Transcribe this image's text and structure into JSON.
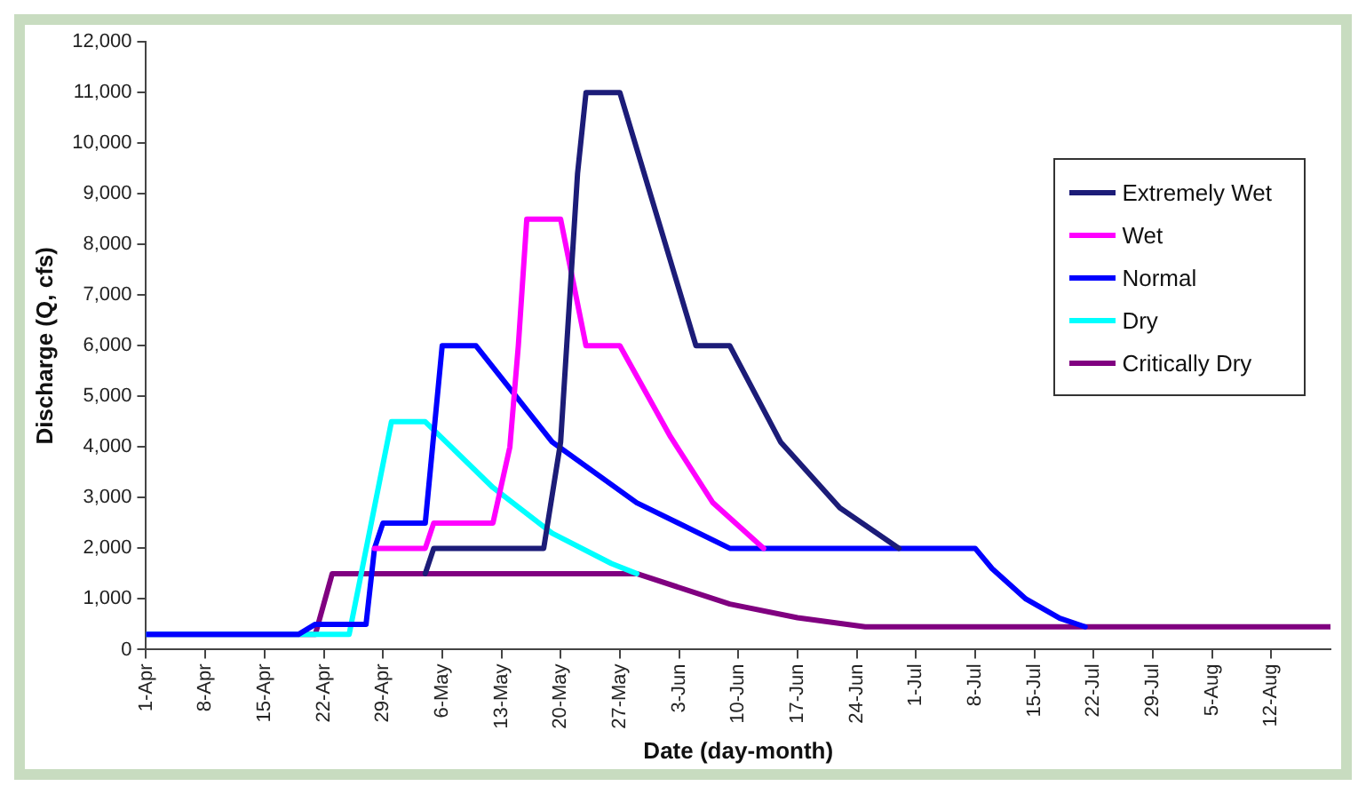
{
  "chart_data": {
    "type": "line",
    "xlabel": "Date (day-month)",
    "ylabel": "Discharge (Q, cfs)",
    "legend": "top right",
    "grid": false,
    "marker": "none",
    "line_style": "solid",
    "xlim": [
      "--04-01",
      "--08-19"
    ],
    "xticks": [
      {
        "value": "--04-01",
        "label": "1-Apr"
      },
      {
        "value": "--04-08",
        "label": "8-Apr"
      },
      {
        "value": "--04-15",
        "label": "15-Apr"
      },
      {
        "value": "--04-22",
        "label": "22-Apr"
      },
      {
        "value": "--04-29",
        "label": "29-Apr"
      },
      {
        "value": "--05-06",
        "label": "6-May"
      },
      {
        "value": "--05-13",
        "label": "13-May"
      },
      {
        "value": "--05-20",
        "label": "20-May"
      },
      {
        "value": "--05-27",
        "label": "27-May"
      },
      {
        "value": "--06-03",
        "label": "3-Jun"
      },
      {
        "value": "--06-10",
        "label": "10-Jun"
      },
      {
        "value": "--06-17",
        "label": "17-Jun"
      },
      {
        "value": "--06-24",
        "label": "24-Jun"
      },
      {
        "value": "--07-01",
        "label": "1-Jul"
      },
      {
        "value": "--07-08",
        "label": "8-Jul"
      },
      {
        "value": "--07-15",
        "label": "15-Jul"
      },
      {
        "value": "--07-22",
        "label": "22-Jul"
      },
      {
        "value": "--07-29",
        "label": "29-Jul"
      },
      {
        "value": "--08-05",
        "label": "5-Aug"
      },
      {
        "value": "--08-12",
        "label": "12-Aug"
      }
    ],
    "ylim": [
      0,
      12000
    ],
    "yticks": [
      0,
      {
        "value": 1000,
        "label": "1,000"
      },
      {
        "value": 2000,
        "label": "2,000"
      },
      {
        "value": 3000,
        "label": "3,000"
      },
      {
        "value": 4000,
        "label": "4,000"
      },
      {
        "value": 5000,
        "label": "5,000"
      },
      {
        "value": 6000,
        "label": "6,000"
      },
      {
        "value": 7000,
        "label": "7,000"
      },
      {
        "value": 8000,
        "label": "8,000"
      },
      {
        "value": 9000,
        "label": "9,000"
      },
      {
        "value": 10000,
        "label": "10,000"
      },
      {
        "value": 11000,
        "label": "11,000"
      },
      {
        "value": 12000,
        "label": "12,000"
      }
    ],
    "series": [
      {
        "name": "Extremely Wet",
        "color": "#1c1c78",
        "x": [
          "--05-04",
          "--05-05",
          "--05-18",
          "--05-20",
          "--05-22",
          "--05-23",
          "--05-27",
          "--06-05",
          "--06-09",
          "--06-15",
          "--06-22",
          "--06-29"
        ],
        "values": [
          1500,
          2000,
          2000,
          4100,
          9400,
          11000,
          11000,
          6000,
          6000,
          4100,
          2800,
          2000
        ]
      },
      {
        "name": "Wet",
        "color": "#ff00ff",
        "x": [
          "--04-28",
          "--05-04",
          "--05-05",
          "--05-12",
          "--05-14",
          "--05-15",
          "--05-16",
          "--05-20",
          "--05-23",
          "--05-27",
          "--06-02",
          "--06-07",
          "--06-13"
        ],
        "values": [
          2000,
          2000,
          2500,
          2500,
          4000,
          6000,
          8500,
          8500,
          6000,
          6000,
          4200,
          2900,
          2000
        ]
      },
      {
        "name": "Normal",
        "color": "#0000ff",
        "x": [
          "--04-01",
          "--04-19",
          "--04-21",
          "--04-27",
          "--04-28",
          "--04-29",
          "--05-04",
          "--05-06",
          "--05-10",
          "--05-19",
          "--05-29",
          "--06-09",
          "--07-08",
          "--07-10",
          "--07-14",
          "--07-18",
          "--07-21"
        ],
        "values": [
          300,
          300,
          500,
          500,
          2000,
          2500,
          2500,
          6000,
          6000,
          4100,
          2900,
          2000,
          2000,
          1600,
          1000,
          620,
          450
        ]
      },
      {
        "name": "Dry",
        "color": "#00ffff",
        "x": [
          "--04-01",
          "--04-25",
          "--04-30",
          "--05-04",
          "--05-12",
          "--05-19",
          "--05-26",
          "--05-29"
        ],
        "values": [
          300,
          300,
          4500,
          4500,
          3200,
          2300,
          1700,
          1500
        ]
      },
      {
        "name": "Critically Dry",
        "color": "#800080",
        "x": [
          "--04-01",
          "--04-21",
          "--04-23",
          "--05-29",
          "--06-09",
          "--06-17",
          "--06-25",
          "--08-19"
        ],
        "values": [
          300,
          300,
          1500,
          1500,
          900,
          630,
          450,
          450
        ]
      }
    ]
  }
}
